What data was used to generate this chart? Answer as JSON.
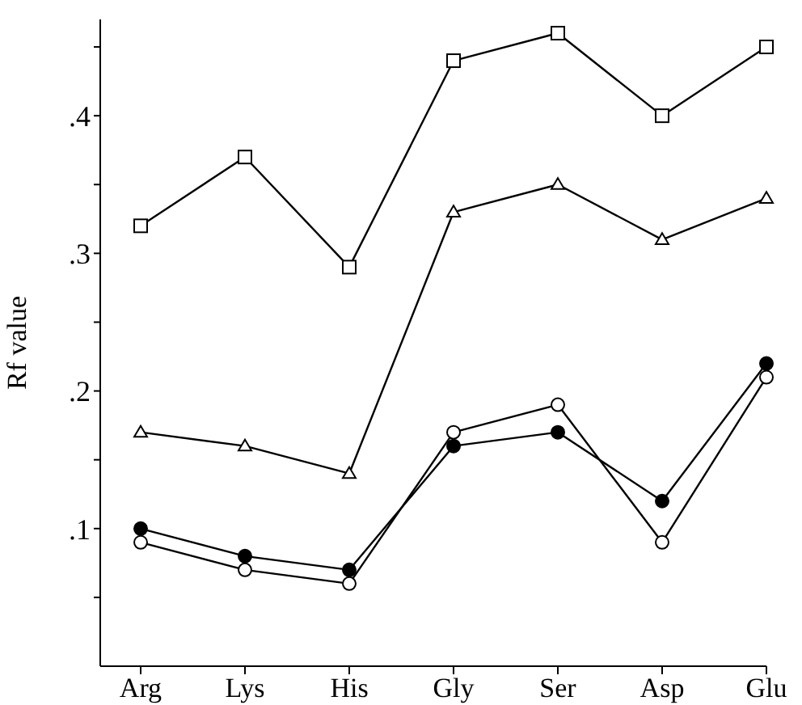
{
  "chart_data": {
    "type": "line",
    "ylabel": "Rf value",
    "categories": [
      "Arg",
      "Lys",
      "His",
      "Gly",
      "Ser",
      "Asp",
      "Glu"
    ],
    "series": [
      {
        "color": "#000000",
        "marker": "square",
        "values": [
          0.32,
          0.37,
          0.29,
          0.44,
          0.46,
          0.4,
          0.45
        ]
      },
      {
        "color": "#000000",
        "marker": "triangle",
        "values": [
          0.17,
          0.16,
          0.14,
          0.33,
          0.35,
          0.31,
          0.34
        ]
      },
      {
        "color": "#000000",
        "marker": "circle",
        "colors": [
          "#000000",
          "#000000",
          "#000000",
          "#000000",
          "#000000",
          "#000000",
          "#000000"
        ],
        "values": [
          0.1,
          0.08,
          0.07,
          0.16,
          0.17,
          0.12,
          0.22
        ]
      },
      {
        "color": "#000000",
        "marker": "circle",
        "values": [
          0.09,
          0.07,
          0.06,
          0.17,
          0.19,
          0.09,
          0.21
        ]
      }
    ],
    "ylim": [
      0,
      0.47
    ],
    "yticks": [
      {
        "value": 0.05,
        "label": null
      },
      {
        "value": 0.1,
        "label": ".1"
      },
      {
        "value": 0.15,
        "label": null
      },
      {
        "value": 0.2,
        "label": ".2"
      },
      {
        "value": 0.25,
        "label": null
      },
      {
        "value": 0.3,
        "label": ".3"
      },
      {
        "value": 0.35,
        "label": null
      },
      {
        "value": 0.4,
        "label": ".4"
      },
      {
        "value": 0.45,
        "label": null
      }
    ],
    "grid": false,
    "legend": false,
    "line_style": "solid"
  }
}
